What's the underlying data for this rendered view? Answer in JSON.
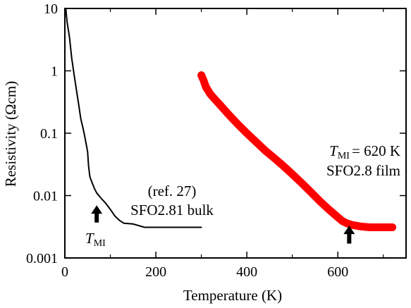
{
  "chart_data": {
    "type": "line",
    "xlabel": "Temperature (K)",
    "ylabel": "Resistivity (Ωcm)",
    "xlim": [
      0,
      750
    ],
    "ylim": [
      0.001,
      10
    ],
    "yscale": "log",
    "xticks": [
      0,
      200,
      400,
      600
    ],
    "yticks": [
      0.001,
      0.01,
      0.1,
      1,
      10
    ],
    "ytick_labels": [
      "0.001",
      "0.01",
      "0.1",
      "1",
      "10"
    ],
    "grid": false,
    "legend": "none",
    "series": [
      {
        "color": "#000000",
        "points": [
          [
            2,
            10
          ],
          [
            5,
            6
          ],
          [
            10,
            3.5
          ],
          [
            15,
            1.6
          ],
          [
            20,
            0.9
          ],
          [
            25,
            0.52
          ],
          [
            30,
            0.3
          ],
          [
            35,
            0.17
          ],
          [
            40,
            0.12
          ],
          [
            45,
            0.08
          ],
          [
            50,
            0.05
          ],
          [
            52,
            0.03
          ],
          [
            55,
            0.02
          ],
          [
            60,
            0.016
          ],
          [
            65,
            0.013
          ],
          [
            70,
            0.011
          ],
          [
            80,
            0.009
          ],
          [
            90,
            0.0075
          ],
          [
            100,
            0.006
          ],
          [
            110,
            0.0047
          ],
          [
            120,
            0.004
          ],
          [
            130,
            0.0036
          ],
          [
            150,
            0.0035
          ],
          [
            175,
            0.0031
          ],
          [
            200,
            0.0031
          ],
          [
            250,
            0.0031
          ],
          [
            300,
            0.0031
          ]
        ]
      },
      {
        "color": "#ff0000",
        "points": [
          [
            300,
            0.85
          ],
          [
            305,
            0.7
          ],
          [
            310,
            0.55
          ],
          [
            320,
            0.42
          ],
          [
            340,
            0.29
          ],
          [
            360,
            0.2
          ],
          [
            380,
            0.14
          ],
          [
            400,
            0.1
          ],
          [
            420,
            0.073
          ],
          [
            440,
            0.053
          ],
          [
            460,
            0.04
          ],
          [
            480,
            0.03
          ],
          [
            500,
            0.022
          ],
          [
            520,
            0.016
          ],
          [
            540,
            0.0115
          ],
          [
            560,
            0.0082
          ],
          [
            580,
            0.006
          ],
          [
            600,
            0.0045
          ],
          [
            610,
            0.0039
          ],
          [
            620,
            0.0036
          ],
          [
            630,
            0.0034
          ],
          [
            650,
            0.0032
          ],
          [
            670,
            0.0031
          ],
          [
            690,
            0.0031
          ],
          [
            710,
            0.0031
          ],
          [
            720,
            0.0031
          ]
        ]
      }
    ],
    "annotations": {
      "right_tmi_symbol": "T",
      "right_tmi_sub": "MI",
      "right_tmi_value": "= 620 K",
      "right_sample": "SFO2.8 film",
      "left_ref": "(ref. 27)",
      "left_sample": "SFO2.81 bulk",
      "left_tmi_symbol": "T",
      "left_tmi_sub": "MI"
    },
    "arrows": [
      {
        "x": 70,
        "y_tip": 0.007,
        "y_tail": 0.0037
      },
      {
        "x": 625,
        "y_tip": 0.0033,
        "y_tail": 0.0017
      }
    ]
  }
}
